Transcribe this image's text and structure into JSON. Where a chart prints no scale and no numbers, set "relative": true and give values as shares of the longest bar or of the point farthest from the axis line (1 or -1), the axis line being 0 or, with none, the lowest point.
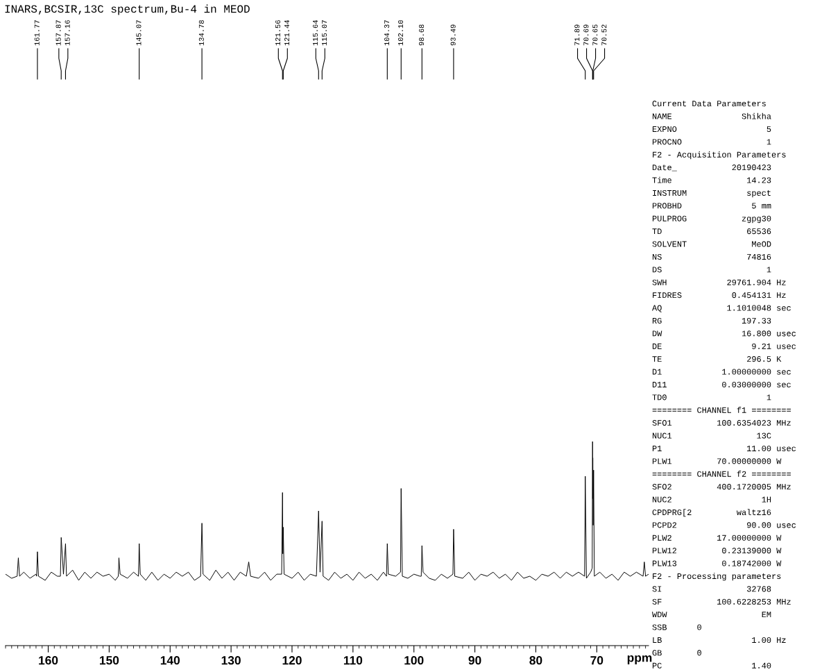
{
  "chart_data": {
    "type": "line",
    "title": "INARS,BCSIR,13C spectrum,Bu-4 in MEOD",
    "xlabel": "ppm",
    "relative": true,
    "xlim": [
      167.0,
      61.5
    ],
    "xticks": [
      160,
      150,
      140,
      130,
      120,
      110,
      100,
      90,
      80,
      70
    ],
    "series": [
      {
        "color": "#000000",
        "x": [
          167.0,
          166.0,
          165.1,
          164.9,
          164.7,
          164.0,
          163.0,
          162.0,
          161.9,
          161.77,
          161.6,
          160.5,
          159.5,
          158.5,
          158.0,
          157.87,
          157.5,
          157.16,
          157.0,
          156.0,
          155.0,
          154.0,
          153.0,
          152.0,
          151.0,
          150.0,
          149.0,
          148.5,
          148.4,
          148.2,
          147.0,
          146.0,
          145.2,
          145.07,
          144.9,
          144.0,
          143.0,
          142.0,
          141.0,
          140.0,
          139.0,
          138.0,
          137.0,
          136.0,
          135.0,
          134.78,
          134.6,
          133.5,
          132.5,
          131.5,
          130.5,
          129.5,
          128.5,
          127.5,
          127.1,
          126.8,
          125.5,
          124.5,
          123.5,
          122.5,
          121.7,
          121.56,
          121.5,
          121.44,
          121.3,
          120.0,
          119.0,
          118.0,
          117.0,
          116.0,
          115.64,
          115.4,
          115.07,
          114.9,
          114.0,
          113.0,
          112.0,
          111.0,
          110.0,
          109.0,
          108.0,
          107.0,
          106.0,
          105.0,
          104.5,
          104.37,
          104.2,
          103.0,
          102.2,
          102.1,
          101.9,
          101.0,
          100.0,
          99.0,
          98.8,
          98.68,
          98.5,
          97.5,
          96.5,
          95.5,
          94.5,
          93.6,
          93.49,
          93.3,
          92.0,
          91.0,
          90.0,
          89.0,
          88.0,
          87.0,
          86.0,
          85.0,
          84.0,
          83.0,
          82.0,
          81.0,
          80.0,
          79.0,
          78.0,
          77.0,
          76.0,
          75.0,
          74.0,
          73.0,
          72.0,
          71.89,
          71.7,
          71.0,
          70.75,
          70.69,
          70.67,
          70.65,
          70.6,
          70.52,
          70.4,
          69.5,
          68.5,
          67.5,
          66.5,
          65.5,
          64.5,
          63.5,
          62.4,
          62.2,
          62.0,
          61.5
        ],
        "values": [
          0.35,
          0.33,
          0.34,
          0.43,
          0.34,
          0.36,
          0.33,
          0.35,
          0.34,
          0.46,
          0.34,
          0.32,
          0.36,
          0.34,
          0.34,
          0.53,
          0.35,
          0.5,
          0.34,
          0.37,
          0.32,
          0.36,
          0.33,
          0.36,
          0.34,
          0.35,
          0.32,
          0.34,
          0.43,
          0.35,
          0.33,
          0.36,
          0.34,
          0.5,
          0.35,
          0.32,
          0.36,
          0.32,
          0.35,
          0.33,
          0.36,
          0.34,
          0.36,
          0.32,
          0.34,
          0.6,
          0.35,
          0.32,
          0.37,
          0.33,
          0.36,
          0.32,
          0.36,
          0.34,
          0.41,
          0.34,
          0.33,
          0.36,
          0.32,
          0.35,
          0.35,
          0.75,
          0.45,
          0.58,
          0.35,
          0.33,
          0.36,
          0.32,
          0.35,
          0.34,
          0.66,
          0.36,
          0.61,
          0.34,
          0.32,
          0.36,
          0.33,
          0.35,
          0.32,
          0.36,
          0.33,
          0.35,
          0.32,
          0.36,
          0.34,
          0.5,
          0.35,
          0.34,
          0.36,
          0.77,
          0.34,
          0.33,
          0.35,
          0.34,
          0.34,
          0.49,
          0.36,
          0.33,
          0.32,
          0.35,
          0.33,
          0.35,
          0.57,
          0.34,
          0.33,
          0.36,
          0.32,
          0.35,
          0.34,
          0.36,
          0.33,
          0.35,
          0.32,
          0.36,
          0.33,
          0.34,
          0.32,
          0.35,
          0.34,
          0.36,
          0.33,
          0.36,
          0.34,
          0.36,
          0.34,
          0.83,
          0.33,
          0.36,
          0.38,
          1.0,
          0.72,
          0.92,
          0.59,
          0.86,
          0.34,
          0.36,
          0.33,
          0.35,
          0.32,
          0.36,
          0.34,
          0.36,
          0.34,
          0.41,
          0.34,
          0.35
        ]
      }
    ],
    "annotations": [
      {
        "text": "161.77",
        "x": 161.77
      },
      {
        "text": "157.87",
        "x": 157.87
      },
      {
        "text": "157.16",
        "x": 157.16
      },
      {
        "text": "145.07",
        "x": 145.07
      },
      {
        "text": "134.78",
        "x": 134.78
      },
      {
        "text": "121.56",
        "x": 121.56
      },
      {
        "text": "121.44",
        "x": 121.44
      },
      {
        "text": "115.64",
        "x": 115.64
      },
      {
        "text": "115.07",
        "x": 115.07
      },
      {
        "text": "104.37",
        "x": 104.37
      },
      {
        "text": "102.10",
        "x": 102.1
      },
      {
        "text": "98.68",
        "x": 98.68
      },
      {
        "text": "93.49",
        "x": 93.49
      },
      {
        "text": "71.89",
        "x": 71.89
      },
      {
        "text": "70.69",
        "x": 70.69
      },
      {
        "text": "70.65",
        "x": 70.65
      },
      {
        "text": "70.52",
        "x": 70.52
      },
      "Current Data Parameters",
      "NAME              Shikha",
      "EXPNO                  5",
      "PROCNO                 1",
      "F2 - Acquisition Parameters",
      "Date_           20190423",
      "Time               14.23",
      "INSTRUM            spect",
      "PROBHD              5 mm",
      "PULPROG           zgpg30",
      "TD                 65536",
      "SOLVENT             MeOD",
      "NS                 74816",
      "DS                     1",
      "SWH            29761.904 Hz",
      "FIDRES          0.454131 Hz",
      "AQ             1.1010048 sec",
      "RG                197.33",
      "DW                16.800 usec",
      "DE                  9.21 usec",
      "TE                 296.5 K",
      "D1            1.00000000 sec",
      "D11           0.03000000 sec",
      "TD0                    1",
      "======== CHANNEL f1 ========",
      "SFO1         100.6354023 MHz",
      "NUC1                 13C",
      "P1                 11.00 usec",
      "PLW1         70.00000000 W",
      "======== CHANNEL f2 ========",
      "SFO2         400.1720005 MHz",
      "NUC2                  1H",
      "CPDPRG[2         waltz16",
      "PCPD2              90.00 usec",
      "PLW2         17.00000000 W",
      "PLW12         0.23139000 W",
      "PLW13         0.18742000 W",
      "F2 - Processing parameters",
      "SI                 32768",
      "SF           100.6228253 MHz",
      "WDW                   EM",
      "SSB      0",
      "LB                  1.00 Hz",
      "GB       0",
      "PC                  1.40"
    ]
  }
}
